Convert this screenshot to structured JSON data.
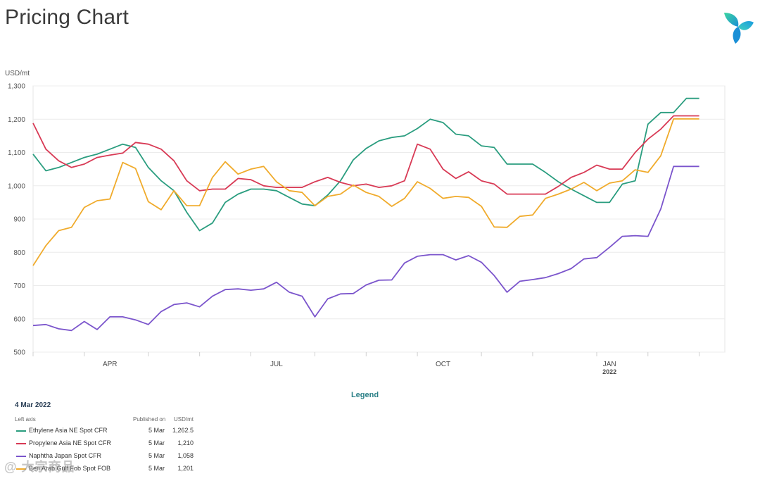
{
  "page": {
    "title": "Pricing Chart"
  },
  "logo": {
    "icon": "brand-logo-icon"
  },
  "chart_data": {
    "type": "line",
    "unit_label": "USD/mt",
    "y_ticks": [
      "1,300",
      "1,200",
      "1,100",
      "1,000",
      "900",
      "800",
      "700",
      "600",
      "500"
    ],
    "ylim": [
      500,
      1300
    ],
    "x_months": [
      "APR",
      "JUL",
      "OCT",
      "JAN"
    ],
    "x_year": "2022",
    "grid": true,
    "x": [
      "2021-03-05",
      "2021-03-12",
      "2021-03-19",
      "2021-03-26",
      "2021-04-02",
      "2021-04-09",
      "2021-04-16",
      "2021-04-23",
      "2021-04-30",
      "2021-05-07",
      "2021-05-14",
      "2021-05-21",
      "2021-05-28",
      "2021-06-04",
      "2021-06-11",
      "2021-06-18",
      "2021-06-25",
      "2021-07-02",
      "2021-07-09",
      "2021-07-16",
      "2021-07-23",
      "2021-07-30",
      "2021-08-06",
      "2021-08-13",
      "2021-08-20",
      "2021-08-27",
      "2021-09-03",
      "2021-09-10",
      "2021-09-17",
      "2021-09-24",
      "2021-10-01",
      "2021-10-08",
      "2021-10-15",
      "2021-10-22",
      "2021-10-29",
      "2021-11-05",
      "2021-11-12",
      "2021-11-19",
      "2021-11-26",
      "2021-12-03",
      "2021-12-10",
      "2021-12-17",
      "2021-12-24",
      "2021-12-31",
      "2022-01-07",
      "2022-01-14",
      "2022-01-21",
      "2022-01-28",
      "2022-02-04",
      "2022-02-11",
      "2022-02-18",
      "2022-02-25",
      "2022-03-04"
    ],
    "series": [
      {
        "name": "Ethylene Asia NE Spot CFR",
        "color": "#2a9d7f",
        "values": [
          1095,
          1045,
          1055,
          1070,
          1085,
          1095,
          1110,
          1125,
          1115,
          1055,
          1015,
          985,
          920,
          865,
          888,
          950,
          975,
          990,
          990,
          985,
          965,
          945,
          940,
          972,
          1015,
          1078,
          1112,
          1135,
          1145,
          1150,
          1172,
          1200,
          1190,
          1155,
          1150,
          1120,
          1115,
          1065,
          1065,
          1065,
          1040,
          1012,
          990,
          970,
          950,
          950,
          1005,
          1015,
          1185,
          1220,
          1220,
          1262.5,
          1262.5
        ]
      },
      {
        "name": "Propylene Asia NE Spot CFR",
        "color": "#d83a55",
        "values": [
          1188,
          1110,
          1075,
          1055,
          1065,
          1085,
          1092,
          1098,
          1130,
          1125,
          1110,
          1075,
          1015,
          985,
          990,
          990,
          1022,
          1018,
          1000,
          995,
          995,
          995,
          1012,
          1025,
          1010,
          1000,
          1005,
          995,
          1000,
          1015,
          1125,
          1110,
          1050,
          1022,
          1042,
          1015,
          1005,
          975,
          975,
          975,
          975,
          998,
          1025,
          1040,
          1062,
          1050,
          1050,
          1100,
          1140,
          1170,
          1210,
          1210,
          1210
        ]
      },
      {
        "name": "Naphtha Japan Spot CFR",
        "color": "#7b55cc",
        "values": [
          580,
          583,
          570,
          565,
          592,
          568,
          606,
          606,
          597,
          583,
          622,
          643,
          648,
          636,
          668,
          688,
          690,
          686,
          690,
          710,
          680,
          668,
          606,
          660,
          675,
          676,
          702,
          716,
          717,
          768,
          788,
          793,
          793,
          777,
          790,
          770,
          730,
          680,
          713,
          718,
          724,
          736,
          751,
          780,
          784,
          815,
          848,
          850,
          848,
          930,
          1058,
          1058,
          1058
        ]
      },
      {
        "name": "Ben Arab Gulf Fob Spot FOB",
        "color": "#f0ab2c",
        "values": [
          760,
          820,
          865,
          875,
          935,
          955,
          960,
          1070,
          1052,
          952,
          928,
          985,
          940,
          940,
          1025,
          1072,
          1035,
          1050,
          1058,
          1012,
          985,
          980,
          940,
          968,
          975,
          1002,
          980,
          968,
          938,
          962,
          1012,
          992,
          962,
          968,
          965,
          938,
          876,
          875,
          908,
          912,
          962,
          975,
          990,
          1010,
          985,
          1008,
          1015,
          1048,
          1040,
          1090,
          1201,
          1201,
          1201
        ]
      }
    ]
  },
  "legend": {
    "heading": "Legend",
    "date": "4 Mar 2022",
    "axis_label": "Left axis",
    "published_header": "Published on",
    "unit_header": "USD/mt",
    "rows": [
      {
        "name": "Ethylene Asia NE Spot CFR",
        "published": "5 Mar",
        "value": "1,262.5",
        "color": "#2a9d7f"
      },
      {
        "name": "Propylene Asia NE Spot CFR",
        "published": "5 Mar",
        "value": "1,210",
        "color": "#d83a55"
      },
      {
        "name": "Naphtha Japan Spot CFR",
        "published": "5 Mar",
        "value": "1,058",
        "color": "#7b55cc"
      },
      {
        "name": "Ben Arab Gulf Fob Spot FOB",
        "published": "5 Mar",
        "value": "1,201",
        "color": "#f0ab2c"
      }
    ]
  },
  "watermark": "@ 大宗商品"
}
